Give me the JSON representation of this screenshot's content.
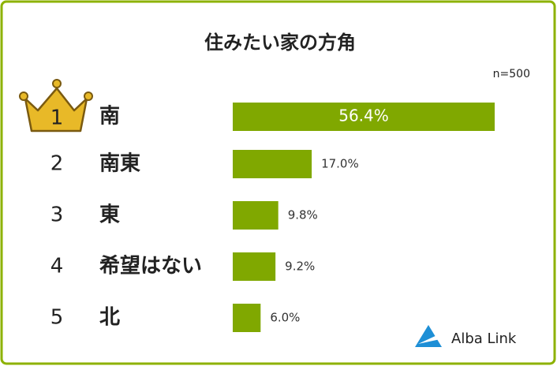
{
  "chart_data": {
    "type": "bar",
    "orientation": "horizontal",
    "title": "住みたい家の方角",
    "note": "n=500",
    "ranks": [
      "1",
      "2",
      "3",
      "4",
      "5"
    ],
    "categories": [
      "南",
      "南東",
      "東",
      "希望はない",
      "北"
    ],
    "values": [
      56.4,
      17.0,
      9.8,
      9.2,
      6.0
    ],
    "value_labels": [
      "56.4%",
      "17.0%",
      "9.8%",
      "9.2%",
      "6.0%"
    ],
    "color": "#80a800",
    "brand": "Alba Link"
  }
}
